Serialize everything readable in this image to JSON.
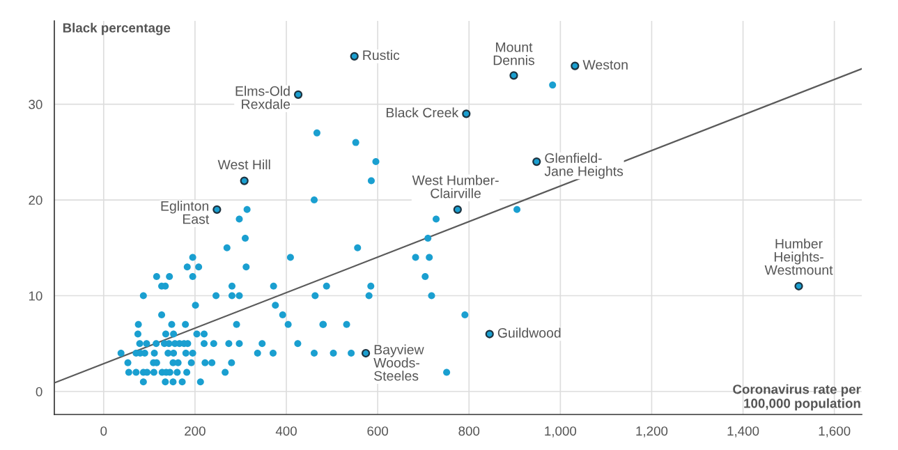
{
  "chart_data": {
    "type": "scatter",
    "xlabel": "Coronavirus rate per\n100,000 population",
    "ylabel": "Black percentage",
    "xlim": [
      -108,
      1660
    ],
    "ylim": [
      -2.4,
      38.7
    ],
    "xticks": [
      0,
      200,
      400,
      600,
      800,
      {
        "value": 1000,
        "label": "1,000"
      },
      {
        "value": 1200,
        "label": "1,200"
      },
      {
        "value": 1400,
        "label": "1,400"
      },
      {
        "value": 1600,
        "label": "1,600"
      }
    ],
    "yticks": [
      0,
      10,
      20,
      30
    ],
    "grid": true,
    "series": [
      {
        "color": "#1a9fd0",
        "marker": "circle",
        "x": [
          270,
          195,
          409,
          183,
          208,
          312,
          116,
          144,
          195,
          127,
          135,
          281,
          372,
          488,
          585,
          87,
          246,
          281,
          297,
          463,
          581,
          201,
          376,
          392,
          127,
          76,
          149,
          179,
          291,
          404,
          481,
          532,
          75,
          136,
          153,
          204,
          220,
          79,
          94,
          115,
          133,
          143,
          156,
          166,
          176,
          184,
          220,
          241,
          274,
          297,
          347,
          425,
          38,
          71,
          80,
          90,
          111,
          141,
          153,
          180,
          195,
          337,
          371,
          461,
          503,
          542,
          53,
          109,
          116,
          152,
          163,
          192,
          222,
          237,
          280,
          55,
          71,
          87,
          95,
          110,
          128,
          137,
          145,
          161,
          182,
          266,
          87,
          135,
          152,
          172,
          212,
          461,
          314,
          297,
          310,
          556,
          467,
          552,
          596,
          586,
          905,
          728,
          710,
          683,
          713,
          704,
          718,
          791,
          480,
          751,
          983
        ],
        "values": [
          15,
          14,
          14,
          13,
          13,
          13,
          12,
          12,
          12,
          11,
          11,
          11,
          11,
          11,
          11,
          10,
          10,
          10,
          10,
          10,
          10,
          9,
          9,
          8,
          8,
          7,
          7,
          7,
          7,
          7,
          7,
          7,
          6,
          6,
          6,
          6,
          6,
          5,
          5,
          5,
          5,
          5,
          5,
          5,
          5,
          5,
          5,
          5,
          5,
          5,
          5,
          5,
          4,
          4,
          4,
          4,
          4,
          4,
          4,
          4,
          4,
          4,
          4,
          4,
          4,
          4,
          3,
          3,
          3,
          3,
          3,
          3,
          3,
          3,
          3,
          2,
          2,
          2,
          2,
          2,
          2,
          2,
          2,
          2,
          2,
          2,
          1,
          1,
          1,
          1,
          1,
          20,
          19,
          18,
          16,
          15,
          27,
          26,
          24,
          22,
          19,
          18,
          16,
          14,
          14,
          12,
          10,
          8,
          7,
          2,
          32
        ]
      },
      {
        "color": "#1a9fd0",
        "marker": "circle",
        "x": [
          549,
          898,
          1032,
          426,
          794,
          948,
          308,
          248,
          775,
          1522,
          845,
          574
        ],
        "values": [
          35,
          33,
          34,
          31,
          29,
          24,
          22,
          19,
          19,
          11,
          6,
          4
        ]
      },
      {
        "type": "line",
        "color": "#5a5a5a",
        "marker": "none",
        "x": [
          -108,
          1660
        ],
        "values": [
          0.9,
          33.7
        ]
      }
    ],
    "annotations": [
      {
        "text": "Rustic",
        "x": 549,
        "y": 35
      },
      {
        "text": "Mount\nDennis",
        "x": 898,
        "y": 33
      },
      {
        "text": "Weston",
        "x": 1032,
        "y": 34
      },
      {
        "text": "Elms-Old\nRexdale",
        "x": 426,
        "y": 31
      },
      {
        "text": "Black Creek",
        "x": 794,
        "y": 29
      },
      {
        "text": "Glenfield-\nJane Heights",
        "x": 948,
        "y": 24
      },
      {
        "text": "West Hill",
        "x": 308,
        "y": 22
      },
      {
        "text": "Eglinton\nEast",
        "x": 248,
        "y": 19
      },
      {
        "text": "West Humber-\nClairville",
        "x": 775,
        "y": 19
      },
      {
        "text": "Humber\nHeights-\nWestmount",
        "x": 1522,
        "y": 11
      },
      {
        "text": "Guildwood",
        "x": 845,
        "y": 6
      },
      {
        "text": "Bayview\nWoods-\nSteeles",
        "x": 574,
        "y": 4
      }
    ]
  }
}
